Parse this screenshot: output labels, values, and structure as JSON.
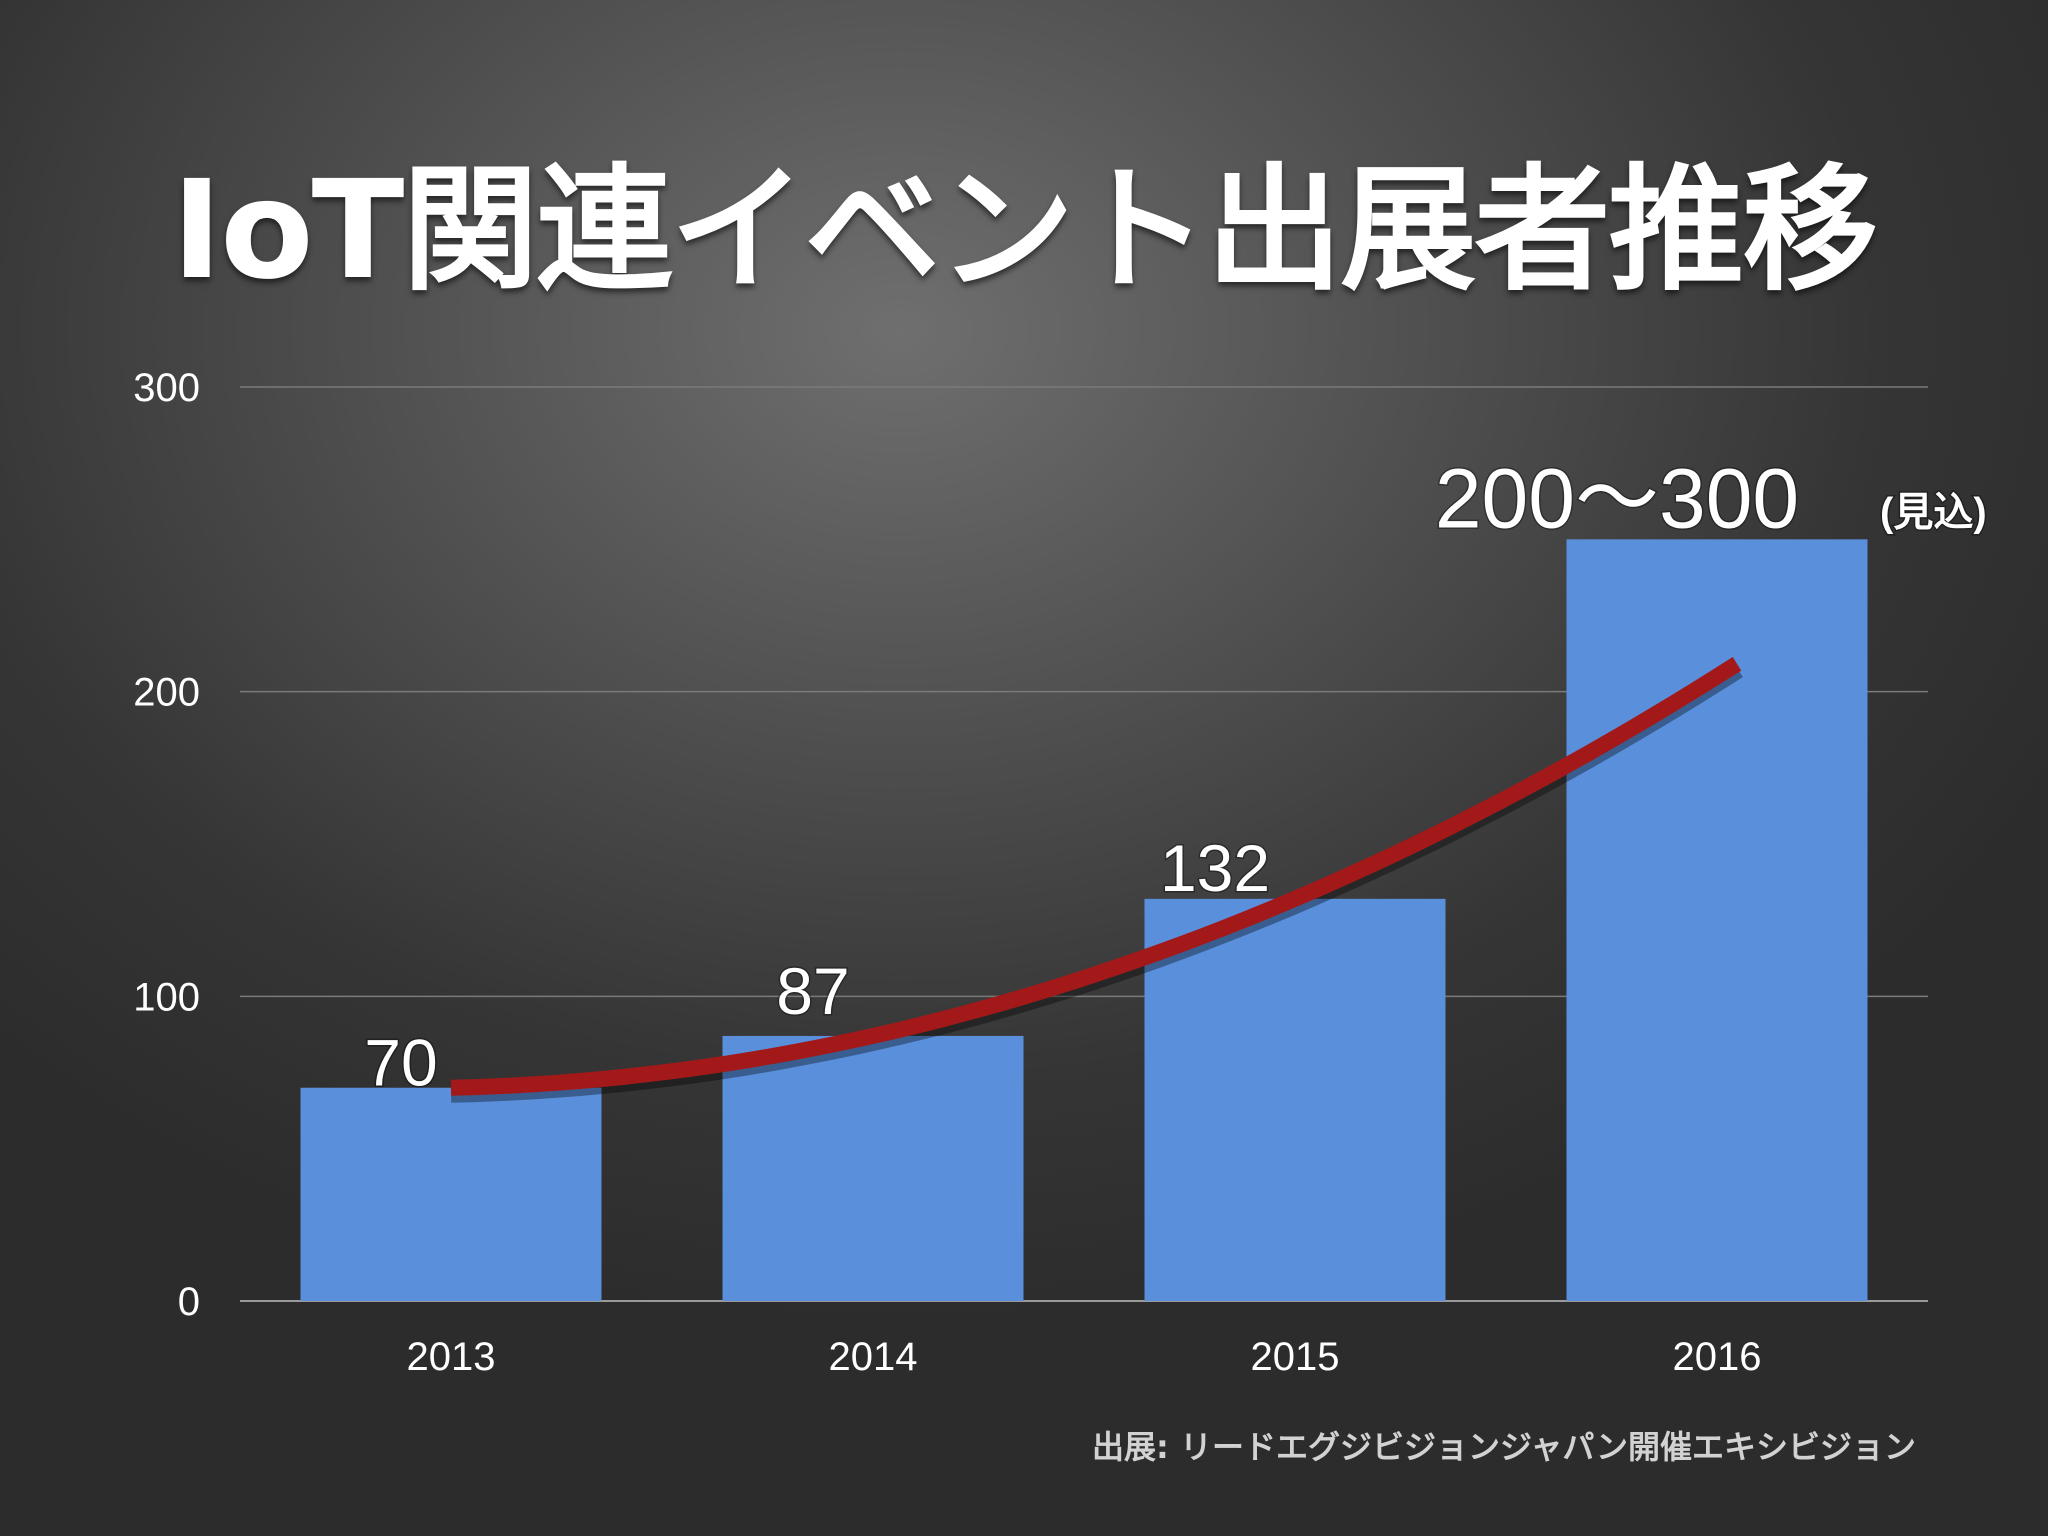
{
  "title": "IoT関連イベント出展者推移",
  "source": "出展: リードエグジビジョンジャパン開催エキシビジョン",
  "chart_data": {
    "type": "bar",
    "categories": [
      "2013",
      "2014",
      "2015",
      "2016"
    ],
    "values": [
      70,
      87,
      132,
      250
    ],
    "data_labels": [
      "70",
      "87",
      "132",
      "200〜300"
    ],
    "data_label_note": "(見込)",
    "ylim": [
      0,
      300
    ],
    "yticks": [
      0,
      100,
      200,
      300
    ],
    "grid": true,
    "trend_line": true,
    "bar_color": "#5a8fdc",
    "trend_color": "#a31919",
    "title": "IoT関連イベント出展者推移",
    "xlabel": "",
    "ylabel": ""
  }
}
